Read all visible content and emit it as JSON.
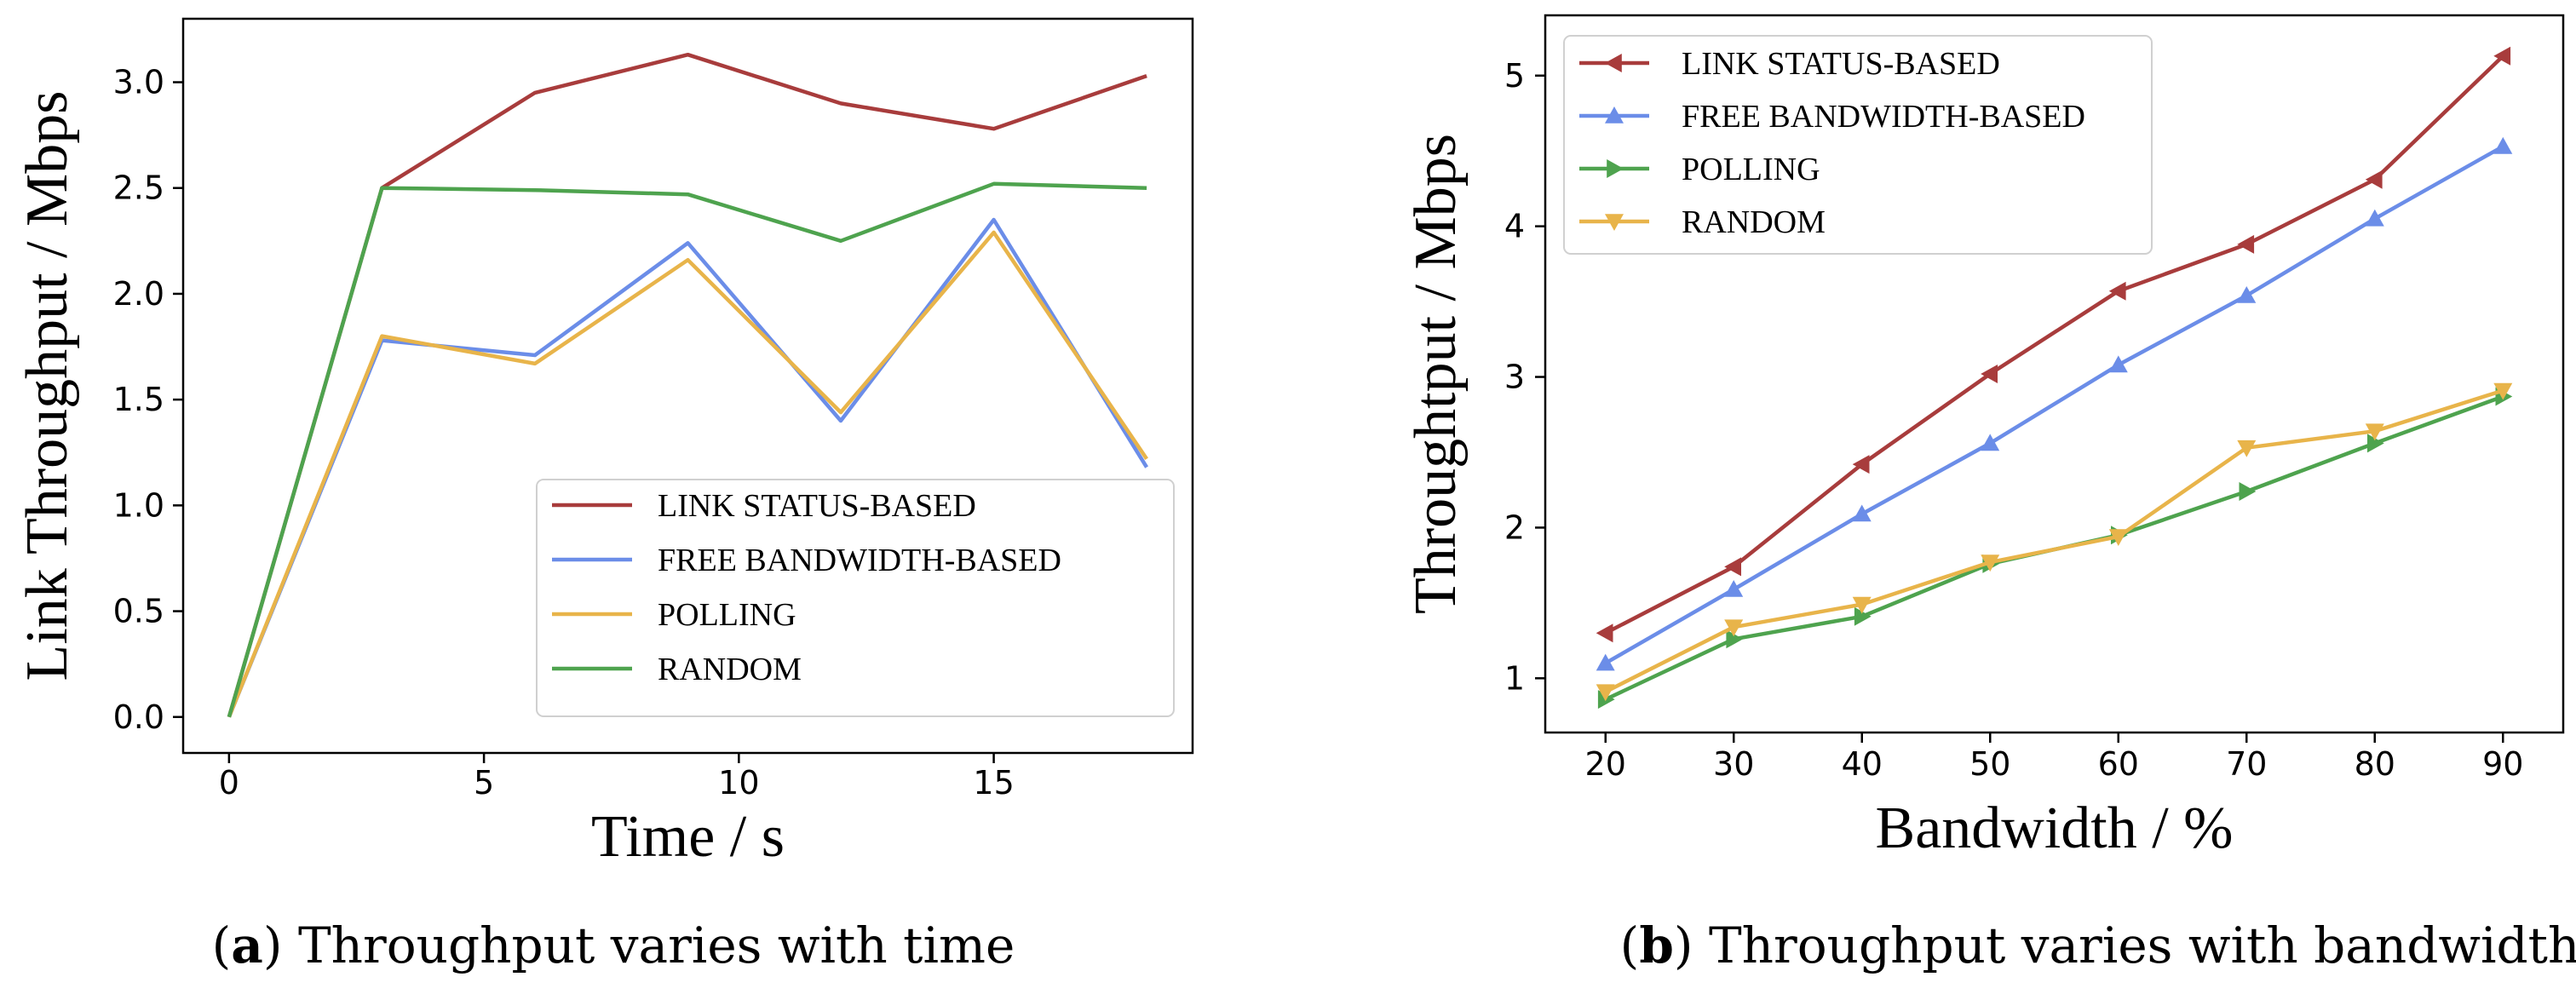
{
  "chart_data": [
    {
      "type": "line",
      "panel": "a",
      "caption_letter": "a",
      "caption": "Throughput varies with time",
      "xlabel": "Time / s",
      "ylabel": "Link Throughput / Mbps",
      "xlim": [
        -0.9,
        18.9
      ],
      "ylim": [
        -0.17,
        3.3
      ],
      "xticks": [
        0,
        5,
        10,
        15
      ],
      "yticks": [
        0.0,
        0.5,
        1.0,
        1.5,
        2.0,
        2.5,
        3.0
      ],
      "ytick_format": 1,
      "markers": false,
      "legend_position": "lower-right",
      "x": [
        0,
        3,
        6,
        9,
        12,
        15,
        18
      ],
      "series": [
        {
          "name": "LINK STATUS-BASED",
          "color": "#a83c3c",
          "values": [
            0.0,
            2.5,
            2.95,
            3.13,
            2.9,
            2.78,
            3.03
          ]
        },
        {
          "name": "FREE BANDWIDTH-BASED",
          "color": "#6b8de8",
          "values": [
            0.0,
            1.78,
            1.71,
            2.24,
            1.4,
            2.35,
            1.18
          ]
        },
        {
          "name": "POLLING",
          "color": "#e8b44a",
          "values": [
            0.0,
            1.8,
            1.67,
            2.16,
            1.44,
            2.29,
            1.22
          ]
        },
        {
          "name": "RANDOM",
          "color": "#4ea34e",
          "values": [
            0.0,
            2.5,
            2.49,
            2.47,
            2.25,
            2.52,
            2.5
          ]
        }
      ]
    },
    {
      "type": "line",
      "panel": "b",
      "caption_letter": "b",
      "caption": "Throughput varies with bandwidth",
      "xlabel": "Bandwidth / %",
      "ylabel": "Throughtput / Mbps",
      "xlim": [
        15.3,
        94.7
      ],
      "ylim": [
        0.64,
        5.4
      ],
      "xticks": [
        20,
        30,
        40,
        50,
        60,
        70,
        80,
        90
      ],
      "yticks": [
        1,
        2,
        3,
        4,
        5
      ],
      "ytick_format": 0,
      "markers": true,
      "legend_position": "upper-left",
      "x": [
        20,
        30,
        40,
        50,
        60,
        70,
        80,
        90
      ],
      "series": [
        {
          "name": "LINK STATUS-BASED",
          "color": "#a83c3c",
          "marker": "triangle-left",
          "values": [
            1.3,
            1.74,
            2.42,
            3.02,
            3.57,
            3.88,
            4.31,
            5.13
          ]
        },
        {
          "name": "FREE BANDWIDTH-BASED",
          "color": "#6b8de8",
          "marker": "triangle-up",
          "values": [
            1.1,
            1.59,
            2.09,
            2.56,
            3.08,
            3.54,
            4.05,
            4.53
          ]
        },
        {
          "name": "POLLING",
          "color": "#4ea34e",
          "marker": "triangle-right",
          "values": [
            0.86,
            1.26,
            1.41,
            1.76,
            1.95,
            2.24,
            2.56,
            2.87
          ]
        },
        {
          "name": "RANDOM",
          "color": "#e8b44a",
          "marker": "triangle-down",
          "values": [
            0.91,
            1.34,
            1.49,
            1.77,
            1.94,
            2.53,
            2.64,
            2.91
          ]
        }
      ]
    }
  ]
}
